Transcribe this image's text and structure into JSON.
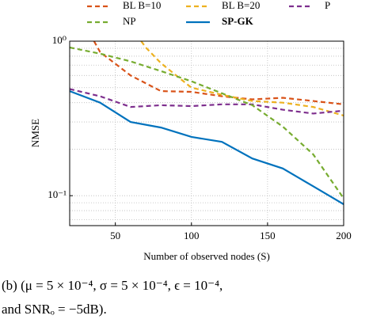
{
  "chart_data": {
    "type": "line",
    "xlabel": "Number of observed nodes (S)",
    "ylabel": "NMSE",
    "xlim": [
      20,
      200
    ],
    "xticks": [
      50,
      100,
      150,
      200
    ],
    "ylim": [
      0.064,
      1
    ],
    "log_y": true,
    "yticks": [
      {
        "value": 1,
        "label": "10⁰"
      },
      {
        "value": 0.1,
        "label": "10⁻¹"
      }
    ],
    "yminorticks": [
      0.07,
      0.08,
      0.09,
      0.2,
      0.3,
      0.4,
      0.5,
      0.6,
      0.7,
      0.8,
      0.9
    ],
    "grid": true,
    "series": [
      {
        "name": "BL B=10",
        "color": "#d95319",
        "dashed": true,
        "x": [
          36,
          40,
          60,
          80,
          100,
          120,
          140,
          160,
          180,
          200
        ],
        "values": [
          1.0,
          0.85,
          0.6,
          0.475,
          0.47,
          0.44,
          0.42,
          0.43,
          0.41,
          0.39
        ]
      },
      {
        "name": "BL B=20",
        "color": "#edb120",
        "dashed": true,
        "x": [
          67,
          70,
          80,
          100,
          120,
          140,
          160,
          180,
          200
        ],
        "values": [
          1.0,
          0.91,
          0.72,
          0.5,
          0.45,
          0.41,
          0.4,
          0.375,
          0.33
        ]
      },
      {
        "name": "P",
        "color": "#7e2f8e",
        "dashed": true,
        "x": [
          20,
          40,
          60,
          80,
          100,
          120,
          140,
          160,
          180,
          200
        ],
        "values": [
          0.49,
          0.44,
          0.375,
          0.385,
          0.38,
          0.39,
          0.39,
          0.36,
          0.34,
          0.355
        ]
      },
      {
        "name": "NP",
        "color": "#77ac30",
        "dashed": true,
        "x": [
          20,
          40,
          60,
          80,
          100,
          120,
          140,
          160,
          180,
          200
        ],
        "values": [
          0.91,
          0.83,
          0.74,
          0.64,
          0.55,
          0.46,
          0.385,
          0.28,
          0.185,
          0.096
        ]
      },
      {
        "name": "SP-GK",
        "color": "#0072bd",
        "dashed": false,
        "x": [
          20,
          40,
          60,
          80,
          100,
          120,
          140,
          160,
          180,
          200
        ],
        "values": [
          0.475,
          0.4,
          0.3,
          0.276,
          0.24,
          0.223,
          0.174,
          0.15,
          0.115,
          0.088
        ]
      }
    ]
  },
  "caption": [
    "(b) (μ = 5 × 10⁻⁴, σ = 5 × 10⁻⁴, ϵ = 10⁻⁴,",
    "and SNRₒ = −5dB)."
  ]
}
